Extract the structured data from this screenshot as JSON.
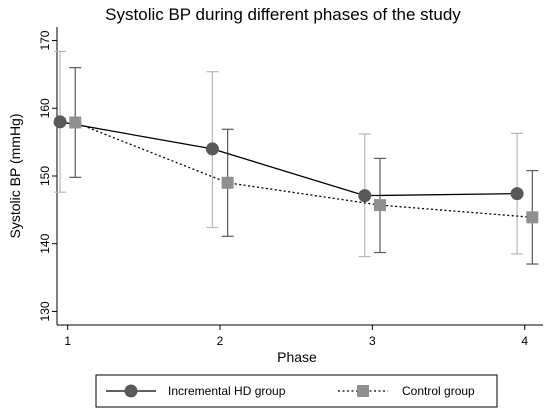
{
  "chart_data": {
    "type": "line",
    "title": "Systolic BP during different phases of the study",
    "xlabel": "Phase",
    "ylabel": "Systolic BP (mmHg)",
    "x": [
      1,
      2,
      3,
      4
    ],
    "xlim": [
      0.93,
      4.12
    ],
    "ylim": [
      128,
      172
    ],
    "yticks": [
      130,
      140,
      150,
      160,
      170
    ],
    "xticks": [
      1,
      2,
      3,
      4
    ],
    "grid": false,
    "legend_position": "bottom",
    "series": [
      {
        "name": "Incremental HD group",
        "style": "solid",
        "marker": "circle",
        "color": "#595959",
        "x_offset": -0.05,
        "values": [
          158.0,
          154.0,
          147.1,
          147.4
        ],
        "ci_lower": [
          147.6,
          142.4,
          138.1,
          138.5
        ],
        "ci_upper": [
          168.4,
          165.4,
          156.2,
          156.3
        ]
      },
      {
        "name": "Control group",
        "style": "dotted",
        "marker": "square",
        "color": "#909090",
        "x_offset": 0.05,
        "values": [
          157.9,
          149.0,
          145.7,
          143.9
        ],
        "ci_lower": [
          149.8,
          141.1,
          138.7,
          137.0
        ],
        "ci_upper": [
          166.0,
          156.9,
          152.6,
          150.8
        ]
      }
    ]
  }
}
